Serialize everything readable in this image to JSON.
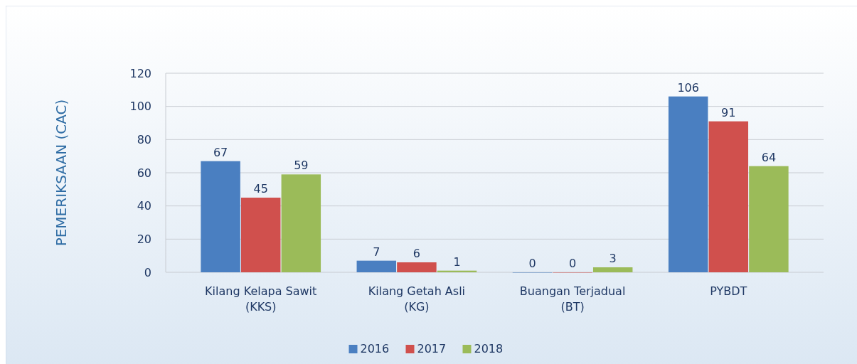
{
  "chart_data": {
    "type": "bar",
    "ylabel": "PEMERIKSAAN (CAC)",
    "categories": [
      "Kilang Kelapa Sawit\n(KKS)",
      "Kilang Getah Asli\n(KG)",
      "Buangan Terjadual\n(BT)",
      "PYBDT"
    ],
    "series": [
      {
        "name": "2016",
        "color": "#4a7fc1",
        "values": [
          67,
          7,
          0,
          106
        ]
      },
      {
        "name": "2017",
        "color": "#d0504d",
        "values": [
          45,
          6,
          0,
          91
        ]
      },
      {
        "name": "2018",
        "color": "#9bbb59",
        "values": [
          59,
          1,
          3,
          64
        ]
      }
    ],
    "ylim": [
      0,
      120
    ],
    "yticks": [
      0,
      20,
      40,
      60,
      80,
      100,
      120
    ],
    "grid": "y",
    "legend": "bottom",
    "data_labels": true
  }
}
